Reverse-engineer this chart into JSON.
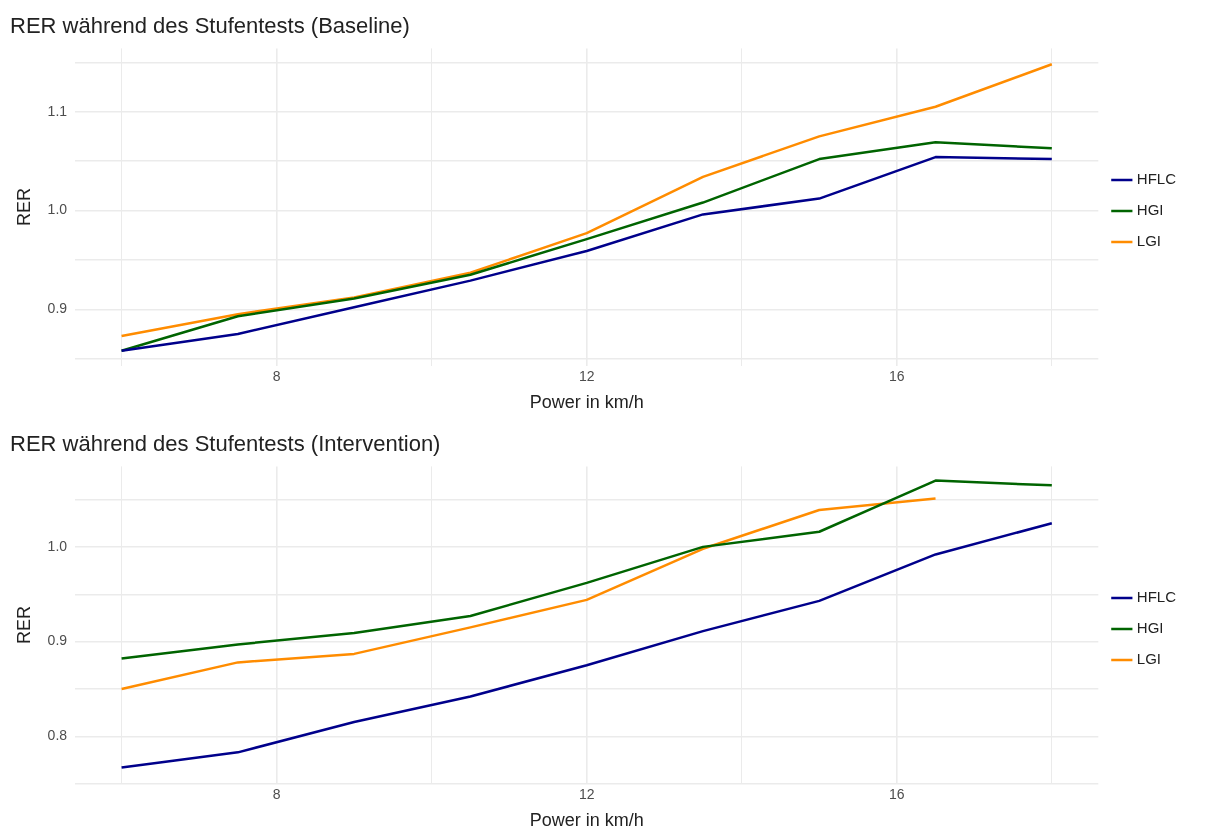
{
  "chart_data": [
    {
      "type": "line",
      "title": "RER während des Stufentests (Baseline)",
      "xlabel": "Power in km/h",
      "ylabel": "RER",
      "x": [
        6,
        7.5,
        9,
        10.5,
        12,
        13.5,
        15,
        16.5,
        18
      ],
      "xlim": [
        5.4,
        18.6
      ],
      "xticks": [
        {
          "value": 6,
          "label": null
        },
        8,
        {
          "value": 10,
          "label": null
        },
        12,
        {
          "value": 14,
          "label": null
        },
        16,
        {
          "value": 18,
          "label": null
        }
      ],
      "ylim": [
        0.843,
        1.164
      ],
      "yticks": [
        {
          "value": 0.85,
          "label": null
        },
        0.9,
        {
          "value": 0.95,
          "label": null
        },
        {
          "value": 1,
          "label": "1.0"
        },
        {
          "value": 1.05,
          "label": null
        },
        1.1,
        {
          "value": 1.15,
          "label": null
        }
      ],
      "grid": true,
      "legend": "right",
      "marker": "none",
      "line_style": "solid",
      "series": [
        {
          "name": "HFLC",
          "color": "#00008b",
          "values": [
            0.858,
            0.875,
            0.902,
            0.929,
            0.959,
            0.996,
            1.012,
            1.054,
            1.052
          ]
        },
        {
          "name": "HGI",
          "color": "#006400",
          "values": [
            0.858,
            0.893,
            0.911,
            0.935,
            0.971,
            1.008,
            1.052,
            1.069,
            1.063
          ]
        },
        {
          "name": "LGI",
          "color": "#ff8c00",
          "values": [
            0.873,
            0.895,
            0.912,
            0.937,
            0.977,
            1.034,
            1.075,
            1.105,
            1.148
          ]
        }
      ]
    },
    {
      "type": "line",
      "title": "RER während des Stufentests (Intervention)",
      "xlabel": "Power in km/h",
      "ylabel": "RER",
      "x": [
        6,
        7.5,
        9,
        10.5,
        12,
        13.5,
        15,
        16.5,
        18
      ],
      "xlim": [
        5.4,
        18.6
      ],
      "xticks": [
        {
          "value": 6,
          "label": null
        },
        8,
        {
          "value": 10,
          "label": null
        },
        12,
        {
          "value": 14,
          "label": null
        },
        16,
        {
          "value": 18,
          "label": null
        }
      ],
      "ylim": [
        0.75,
        1.085
      ],
      "yticks": [
        {
          "value": 0.75,
          "label": null
        },
        0.8,
        {
          "value": 0.85,
          "label": null
        },
        0.9,
        {
          "value": 0.95,
          "label": null
        },
        {
          "value": 1,
          "label": "1.0"
        },
        {
          "value": 1.05,
          "label": null
        }
      ],
      "grid": true,
      "legend": "right",
      "marker": "none",
      "line_style": "solid",
      "series": [
        {
          "name": "HFLC",
          "color": "#00008b",
          "values": [
            0.767,
            0.783,
            0.815,
            0.842,
            0.875,
            0.911,
            0.943,
            0.992,
            1.025
          ]
        },
        {
          "name": "HGI",
          "color": "#006400",
          "values": [
            0.882,
            0.897,
            0.909,
            0.927,
            0.962,
            1.0,
            1.016,
            1.07,
            1.065
          ]
        },
        {
          "name": "LGI",
          "color": "#ff8c00",
          "values": [
            0.85,
            0.878,
            0.887,
            0.915,
            0.944,
            0.998,
            1.039,
            1.051,
            null
          ]
        }
      ]
    }
  ]
}
